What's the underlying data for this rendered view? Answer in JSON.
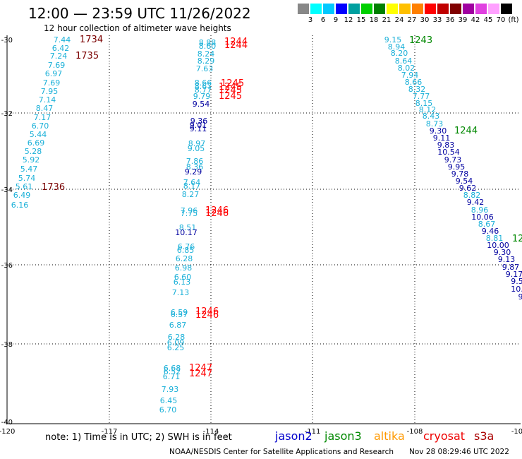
{
  "title": "12:00 — 23:59 UTC 11/26/2022",
  "subtitle": "12 hour collection of altimeter wave heights",
  "legend": {
    "unit": "(ft)",
    "bins": [
      {
        "label": "",
        "color": "#888888"
      },
      {
        "label": "3",
        "color": "#00ffff"
      },
      {
        "label": "6",
        "color": "#00c8ff"
      },
      {
        "label": "9",
        "color": "#0000ff"
      },
      {
        "label": "12",
        "color": "#00a0a0"
      },
      {
        "label": "15",
        "color": "#00d000"
      },
      {
        "label": "18",
        "color": "#008000"
      },
      {
        "label": "21",
        "color": "#ffff00"
      },
      {
        "label": "24",
        "color": "#ffc000"
      },
      {
        "label": "27",
        "color": "#ff8000"
      },
      {
        "label": "30",
        "color": "#ff0000"
      },
      {
        "label": "33",
        "color": "#c00000"
      },
      {
        "label": "36",
        "color": "#800000"
      },
      {
        "label": "39",
        "color": "#a000a0"
      },
      {
        "label": "42",
        "color": "#e040e0"
      },
      {
        "label": "45",
        "color": "#ffa0ff"
      },
      {
        "label": "70",
        "color": "#000000"
      }
    ]
  },
  "axes": {
    "lon_ticks": [
      "-120",
      "-117",
      "-114",
      "-111",
      "-108",
      "-10"
    ],
    "lat_ticks": [
      "-30",
      "-32",
      "-34",
      "-36",
      "-38",
      "-40"
    ]
  },
  "note": "note:  1) Time is in UTC;  2) SWH is in feet",
  "satellites": [
    {
      "name": "jason2",
      "color": "#0000cc"
    },
    {
      "name": "jason3",
      "color": "#008800"
    },
    {
      "name": "altika",
      "color": "#ff9900"
    },
    {
      "name": "cryosat",
      "color": "#ee0000"
    },
    {
      "name": "s3a",
      "color": "#aa0000"
    }
  ],
  "credit": "NOAA/NESDIS Center for Satellite Applications and Research",
  "timestamp": "Nov 28 08:29:46 UTC 2022",
  "colors": {
    "light": "#1ab0d8",
    "dark": "#0000a0",
    "red": "#ff0000",
    "darkred": "#7a0000",
    "green": "#008800"
  },
  "tracks": {
    "t1": {
      "values": [
        "7.44",
        "6.42",
        "7.24",
        "7.69",
        "6.97",
        "7.69",
        "7.95",
        "7.14",
        "8.47",
        "7.17",
        "6.70",
        "5.44",
        "6.69",
        "5.28",
        "5.92",
        "5.47",
        "5.74",
        "5.61",
        "6.49",
        "6.16"
      ],
      "times": [
        {
          "t": "1734",
          "c": "darkred"
        },
        {
          "t": "1735",
          "c": "darkred"
        },
        {
          "t": "1736",
          "c": "darkred"
        }
      ]
    },
    "t2": {
      "values": [
        "8.88",
        "8.60",
        "8.24",
        "8.29",
        "7.63",
        "8.66",
        "8.67",
        "8.77",
        "9.79",
        "9.54",
        "9.36",
        "9.01",
        "9.11",
        "8.97",
        "9.05",
        "7.86",
        "8.36",
        "9.29",
        "7.64",
        "8.17",
        "8.27",
        "7.96",
        "7.75",
        "8.51",
        "10.17",
        "6.76",
        "6.85",
        "6.28",
        "6.98",
        "6.60",
        "6.13",
        "7.13",
        "6.59",
        "6.57",
        "6.87",
        "6.28",
        "6.09",
        "6.25",
        "6.68",
        "6.52",
        "6.71",
        "7.93",
        "6.45",
        "6.70"
      ],
      "times": [
        {
          "t": "1244",
          "c": "red"
        },
        {
          "t": "1244",
          "c": "red"
        },
        {
          "t": "1245",
          "c": "red"
        },
        {
          "t": "1245",
          "c": "red"
        },
        {
          "t": "1245",
          "c": "red"
        },
        {
          "t": "1245",
          "c": "red"
        },
        {
          "t": "1246",
          "c": "red"
        },
        {
          "t": "1246",
          "c": "red"
        },
        {
          "t": "1246",
          "c": "red"
        },
        {
          "t": "1246",
          "c": "red"
        },
        {
          "t": "1247",
          "c": "red"
        },
        {
          "t": "1247",
          "c": "red"
        }
      ]
    },
    "t3": {
      "values": [
        "9.15",
        "8.94",
        "8.20",
        "8.64",
        "8.02",
        "7.94",
        "8.66",
        "8.32",
        "7.77",
        "8.15",
        "8.12",
        "8.43",
        "8.73",
        "9.30",
        "9.11",
        "9.83",
        "10.54",
        "9.73",
        "9.95",
        "9.78",
        "9.54",
        "9.62",
        "8.82",
        "9.42",
        "8.96",
        "10.06",
        "8.67",
        "9.46",
        "8.81",
        "10.00",
        "9.30",
        "9.13",
        "9.87",
        "9.17",
        "9.5",
        "10.",
        "9"
      ],
      "times": [
        {
          "t": "1243",
          "c": "green"
        },
        {
          "t": "1244",
          "c": "green"
        },
        {
          "t": "12",
          "c": "green"
        }
      ]
    }
  }
}
